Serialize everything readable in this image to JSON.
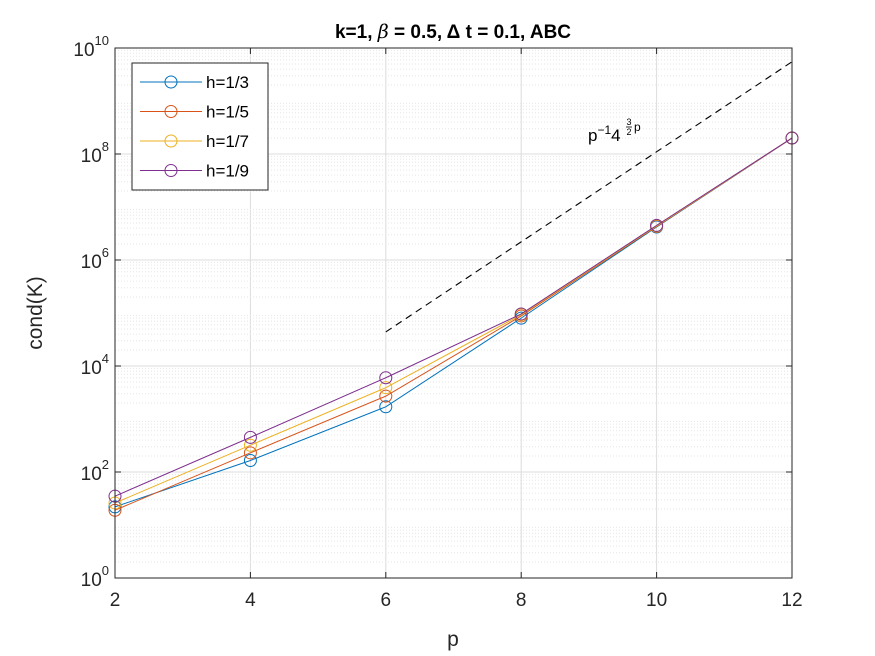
{
  "chart_data": {
    "type": "line",
    "title": "k=1, β = 0.5, Δ t = 0.1,  ABC",
    "xlabel": "p",
    "ylabel": "cond(K)",
    "xlim": [
      2,
      12
    ],
    "ylim": [
      1,
      10000000000
    ],
    "yscale": "log",
    "grid": true,
    "legend_position": "top-left",
    "x_ticks": [
      "2",
      "4",
      "6",
      "8",
      "10",
      "12"
    ],
    "y_ticks": [
      {
        "base": "10",
        "exp": "0",
        "value": 1
      },
      {
        "base": "10",
        "exp": "2",
        "value": 100
      },
      {
        "base": "10",
        "exp": "4",
        "value": 10000
      },
      {
        "base": "10",
        "exp": "6",
        "value": 1000000
      },
      {
        "base": "10",
        "exp": "8",
        "value": 100000000
      },
      {
        "base": "10",
        "exp": "10",
        "value": 10000000000
      }
    ],
    "x": [
      2,
      4,
      6,
      8,
      10,
      12
    ],
    "series": [
      {
        "name": "h=1/3",
        "color": "#0072bd",
        "values": [
          22,
          165,
          1700,
          80000,
          4200000,
          200000000
        ]
      },
      {
        "name": "h=1/5",
        "color": "#d95319",
        "values": [
          19,
          230,
          2700,
          88000,
          4300000,
          200000000
        ]
      },
      {
        "name": "h=1/7",
        "color": "#edb120",
        "values": [
          26,
          320,
          3900,
          93000,
          4400000,
          200000000
        ]
      },
      {
        "name": "h=1/9",
        "color": "#7e2f8e",
        "values": [
          35,
          450,
          6000,
          96000,
          4500000,
          200000000
        ]
      }
    ],
    "reference_line": {
      "label_base": "p",
      "label_base_exp": "−1",
      "label_mid": "4",
      "label_frac_num": "3",
      "label_frac_den": "2",
      "label_tail": "p",
      "style": "dashed",
      "color": "#000000",
      "x": [
        6,
        12
      ],
      "values": [
        44000,
        5500000000
      ]
    }
  }
}
